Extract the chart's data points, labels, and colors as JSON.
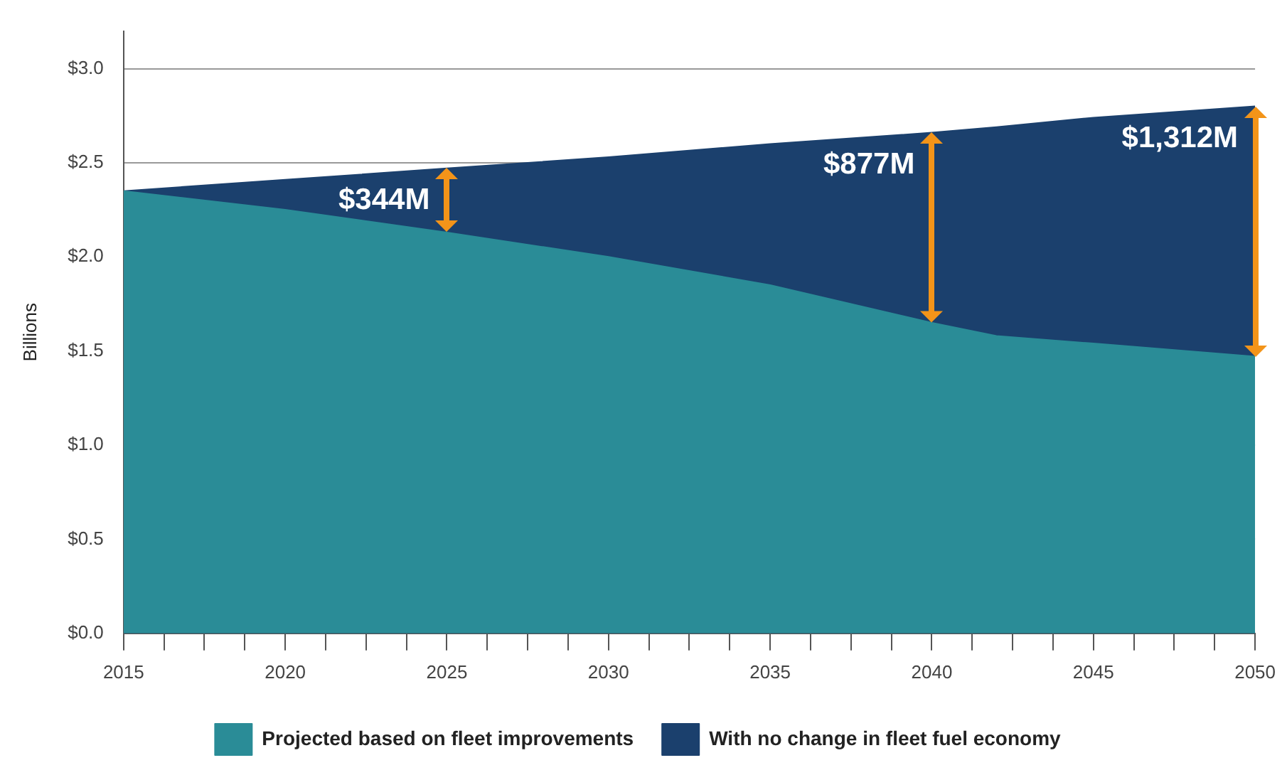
{
  "chart_data": {
    "type": "area",
    "ylabel": "Billions",
    "x": [
      2015,
      2020,
      2025,
      2030,
      2035,
      2040,
      2042,
      2045,
      2050
    ],
    "series": [
      {
        "name": "With no change in fleet fuel economy",
        "color": "#1b406d",
        "values": [
          2.35,
          2.41,
          2.47,
          2.53,
          2.6,
          2.66,
          2.69,
          2.74,
          2.8
        ]
      },
      {
        "name": "Projected based on fleet improvements",
        "color": "#2a8c97",
        "values": [
          2.35,
          2.25,
          2.13,
          2.0,
          1.85,
          1.65,
          1.58,
          1.54,
          1.47
        ]
      }
    ],
    "xlim": [
      2015,
      2050
    ],
    "xticks": [
      2015,
      {
        "value": 2016.25,
        "label": null
      },
      {
        "value": 2017.5,
        "label": null
      },
      {
        "value": 2018.75,
        "label": null
      },
      2020,
      {
        "value": 2021.25,
        "label": null
      },
      {
        "value": 2022.5,
        "label": null
      },
      {
        "value": 2023.75,
        "label": null
      },
      2025,
      {
        "value": 2026.25,
        "label": null
      },
      {
        "value": 2027.5,
        "label": null
      },
      {
        "value": 2028.75,
        "label": null
      },
      2030,
      {
        "value": 2031.25,
        "label": null
      },
      {
        "value": 2032.5,
        "label": null
      },
      {
        "value": 2033.75,
        "label": null
      },
      2035,
      {
        "value": 2036.25,
        "label": null
      },
      {
        "value": 2037.5,
        "label": null
      },
      {
        "value": 2038.75,
        "label": null
      },
      2040,
      {
        "value": 2041.25,
        "label": null
      },
      {
        "value": 2042.5,
        "label": null
      },
      {
        "value": 2043.75,
        "label": null
      },
      2045,
      {
        "value": 2046.25,
        "label": null
      },
      {
        "value": 2047.5,
        "label": null
      },
      {
        "value": 2048.75,
        "label": null
      },
      2050
    ],
    "ylim": [
      0,
      3.2
    ],
    "yticks": [
      {
        "value": 0,
        "label": "$0.0"
      },
      {
        "value": 0.5,
        "label": "$0.5"
      },
      {
        "value": 1,
        "label": "$1.0"
      },
      {
        "value": 1.5,
        "label": "$1.5"
      },
      {
        "value": 2,
        "label": "$2.0"
      },
      {
        "value": 2.5,
        "label": "$2.5"
      },
      {
        "value": 3,
        "label": "$3.0"
      }
    ],
    "grid": "y",
    "legend": "bottom",
    "marker": "none",
    "annotations": [
      {
        "text": "$344M",
        "x": 2025,
        "y": 2.47
      },
      {
        "text": "$877M",
        "x": 2040,
        "y": 2.66
      },
      {
        "text": "$1,312M",
        "x": 2050,
        "y": 2.8
      }
    ]
  }
}
